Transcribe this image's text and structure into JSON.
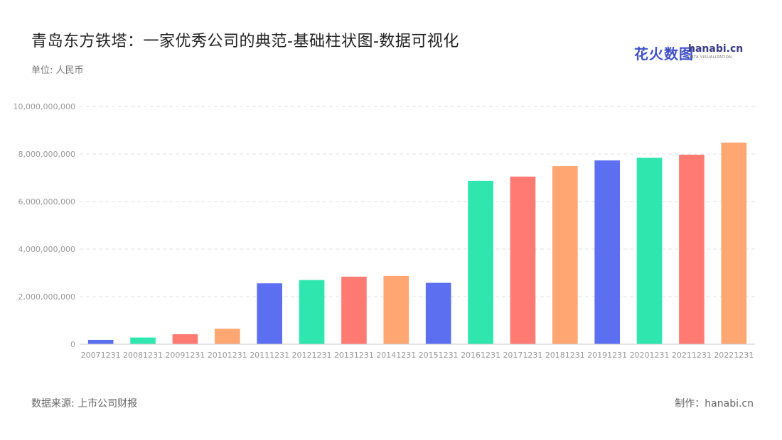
{
  "header": {
    "title": "青岛东方铁塔：一家优秀公司的典范-基础柱状图-数据可视化",
    "unit": "单位: 人民币"
  },
  "logo": {
    "cn": "花火数图",
    "en": "hanabi.cn",
    "sub": "DATA VISUALIZATION"
  },
  "footer": {
    "source": "数据来源: 上市公司财报",
    "credit": "制作：hanabi.cn"
  },
  "colors": {
    "palette": [
      "#5b6ff0",
      "#2ee6ae",
      "#ff7a72",
      "#ffa672"
    ],
    "grid": "#e2e2e2",
    "tick_text": "#999999"
  },
  "chart_data": {
    "type": "bar",
    "categories": [
      "20071231",
      "20081231",
      "20091231",
      "20101231",
      "20111231",
      "20121231",
      "20131231",
      "20141231",
      "20151231",
      "20161231",
      "20171231",
      "20181231",
      "20191231",
      "20201231",
      "20211231",
      "20221231"
    ],
    "values": [
      180000000,
      280000000,
      420000000,
      650000000,
      2560000000,
      2700000000,
      2840000000,
      2870000000,
      2580000000,
      6870000000,
      7050000000,
      7490000000,
      7730000000,
      7840000000,
      7970000000,
      8480000000
    ],
    "title": "青岛东方铁塔：一家优秀公司的典范-基础柱状图-数据可视化",
    "xlabel": "",
    "ylabel": "",
    "ylim": [
      0,
      10000000000
    ],
    "yticks": [
      0,
      2000000000,
      4000000000,
      6000000000,
      8000000000,
      10000000000
    ],
    "ytick_labels": [
      "0",
      "2,000,000,000",
      "4,000,000,000",
      "6,000,000,000",
      "8,000,000,000",
      "10,000,000,000"
    ],
    "grid": true,
    "legend": "none"
  }
}
